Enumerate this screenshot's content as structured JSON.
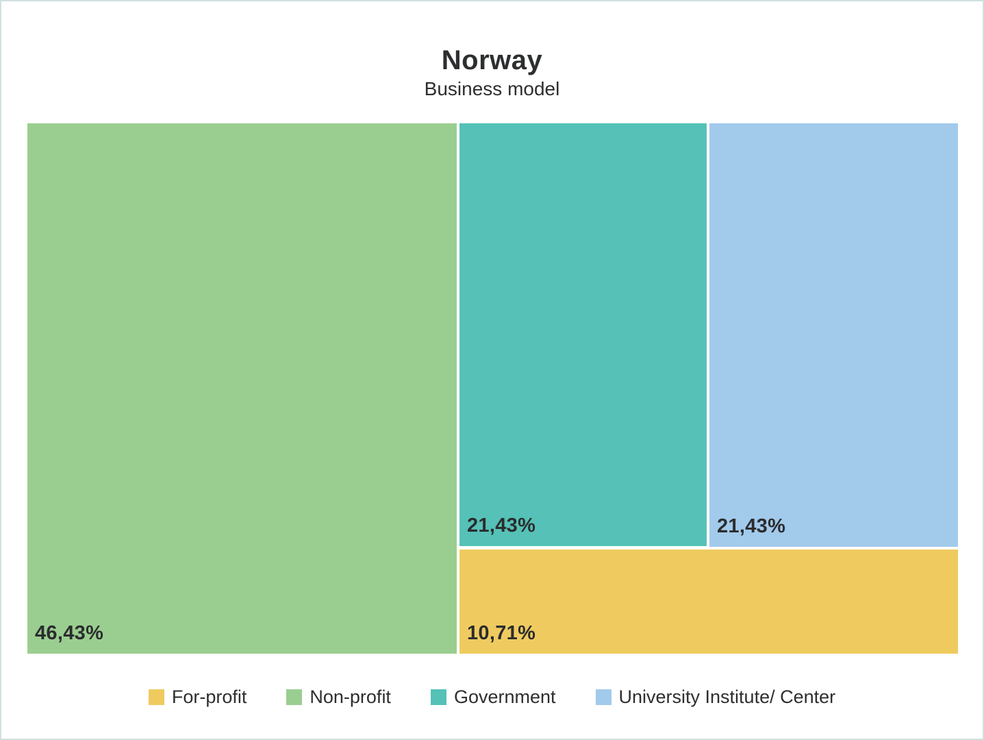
{
  "header": {
    "title": "Norway",
    "subtitle": "Business model"
  },
  "chart_data": {
    "type": "treemap",
    "title": "Norway",
    "subtitle": "Business model",
    "categories": [
      "For-profit",
      "Non-profit",
      "Government",
      "University Institute/ Center"
    ],
    "values": [
      10.71,
      46.43,
      21.43,
      21.43
    ],
    "value_labels": [
      "10,71%",
      "46,43%",
      "21,43%",
      "21,43%"
    ],
    "legend_position": "bottom",
    "label_position": "bottom-left-of-block"
  },
  "colors": {
    "for_profit": "#efcb5f",
    "non_profit": "#9ace90",
    "government": "#55c1b7",
    "university": "#a2caeb",
    "text_dark": "#2d2e30",
    "page_border": "#cfe0e0",
    "background": "#ffffff"
  },
  "blocks": [
    {
      "name": "Non-profit",
      "label": "46,43%",
      "value": 46.43,
      "color": "#9ace90"
    },
    {
      "name": "Government",
      "label": "21,43%",
      "value": 21.43,
      "color": "#55c1b7"
    },
    {
      "name": "University Institute/ Center",
      "label": "21,43%",
      "value": 21.43,
      "color": "#a2caeb"
    },
    {
      "name": "For-profit",
      "label": "10,71%",
      "value": 10.71,
      "color": "#efcb5f"
    }
  ],
  "legend": {
    "items": [
      {
        "label": "For-profit",
        "color": "#efcb5f"
      },
      {
        "label": "Non-profit",
        "color": "#9ace90"
      },
      {
        "label": "Government",
        "color": "#55c1b7"
      },
      {
        "label": "University Institute/ Center",
        "color": "#a2caeb"
      }
    ]
  }
}
